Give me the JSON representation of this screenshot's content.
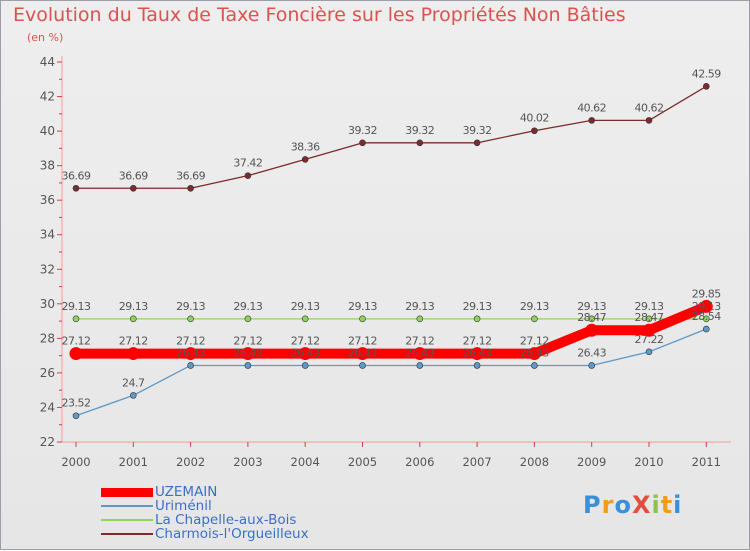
{
  "header": {
    "title": "Evolution du Taux de Taxe Foncière sur les Propriétés Non Bâties",
    "subtitle": "(en %)"
  },
  "chart_data": {
    "type": "line",
    "x": [
      "2000",
      "2001",
      "2002",
      "2003",
      "2004",
      "2005",
      "2006",
      "2007",
      "2008",
      "2009",
      "2010",
      "2011"
    ],
    "ylim": [
      22,
      44
    ],
    "yticks": [
      22,
      24,
      26,
      28,
      30,
      32,
      34,
      36,
      38,
      40,
      42,
      44
    ],
    "grid": false,
    "legend_position": "bottom-left",
    "series": [
      {
        "name": "Charmois-l'Orgueilleux",
        "color": "#7b2c2c",
        "values": [
          36.69,
          36.69,
          36.69,
          37.42,
          38.36,
          39.32,
          39.32,
          39.32,
          40.02,
          40.62,
          40.62,
          42.59
        ],
        "labels": [
          "36.69",
          "36.69",
          "36.69",
          "37.42",
          "38.36",
          "39.32",
          "39.32",
          "39.32",
          "40.02",
          "40.62",
          "40.62",
          "42.59"
        ]
      },
      {
        "name": "La Chapelle-aux-Bois",
        "color": "#8fd35f",
        "values": [
          29.13,
          29.13,
          29.13,
          29.13,
          29.13,
          29.13,
          29.13,
          29.13,
          29.13,
          29.13,
          29.13,
          29.13
        ],
        "labels": [
          "29.13",
          "29.13",
          "29.13",
          "29.13",
          "29.13",
          "29.13",
          "29.13",
          "29.13",
          "29.13",
          "29.13",
          "29.13",
          "29.13"
        ]
      },
      {
        "name": "Uriménil",
        "color": "#5f99c9",
        "values": [
          23.52,
          24.7,
          26.43,
          26.43,
          26.43,
          26.43,
          26.43,
          26.43,
          26.43,
          26.43,
          27.22,
          28.54
        ],
        "labels": [
          "23.52",
          "24.7",
          "26.43",
          "26.43",
          "26.43",
          "26.43",
          "26.43",
          "26.43",
          "26.43",
          "26.43",
          "27.22",
          "28.54"
        ]
      },
      {
        "name": "UZEMAIN",
        "color": "#ff0000",
        "values": [
          27.12,
          27.12,
          27.12,
          27.12,
          27.12,
          27.12,
          27.12,
          27.12,
          27.12,
          28.47,
          28.47,
          29.85
        ],
        "labels": [
          "27.12",
          "27.12",
          "27.12",
          "27.12",
          "27.12",
          "27.12",
          "27.12",
          "27.12",
          "27.12",
          "28.47",
          "28.47",
          "29.85"
        ]
      }
    ]
  },
  "legend": [
    {
      "name": "UZEMAIN",
      "color": "#ff0000"
    },
    {
      "name": "Uriménil",
      "color": "#5f99c9"
    },
    {
      "name": "La Chapelle-aux-Bois",
      "color": "#8fd35f"
    },
    {
      "name": "Charmois-l'Orgueilleux",
      "color": "#7b2c2c"
    }
  ],
  "logo": {
    "text": "ProXiti",
    "colors": [
      "#3a8fd9",
      "#f39c12",
      "#3a8fd9",
      "#e74c3c",
      "#8bc34a",
      "#f39c12",
      "#3a8fd9"
    ]
  }
}
